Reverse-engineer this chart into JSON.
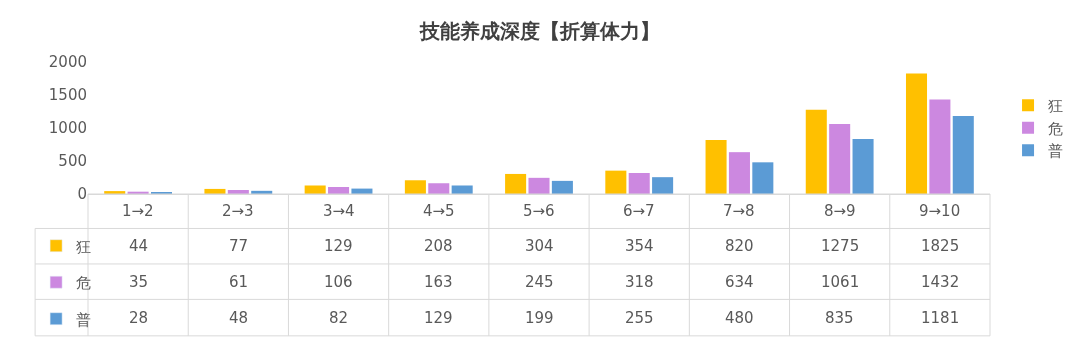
{
  "chart_data": {
    "type": "bar",
    "title": "技能养成深度【折算体力】",
    "categories": [
      "1→2",
      "2→3",
      "3→4",
      "4→5",
      "5→6",
      "6→7",
      "7→8",
      "8→9",
      "9→10"
    ],
    "series": [
      {
        "name": "狂",
        "color": "#ffc000",
        "values": [
          44,
          77,
          129,
          208,
          304,
          354,
          820,
          1275,
          1825
        ]
      },
      {
        "name": "危",
        "color": "#cc88e0",
        "values": [
          35,
          61,
          106,
          163,
          245,
          318,
          634,
          1061,
          1432
        ]
      },
      {
        "name": "普",
        "color": "#5b9bd5",
        "values": [
          28,
          48,
          82,
          129,
          199,
          255,
          480,
          835,
          1181
        ]
      }
    ],
    "ylim": [
      0,
      2000
    ],
    "yticks": [
      0,
      500,
      1000,
      1500,
      2000
    ],
    "grid": false,
    "legend": "right",
    "data_labels": true
  }
}
